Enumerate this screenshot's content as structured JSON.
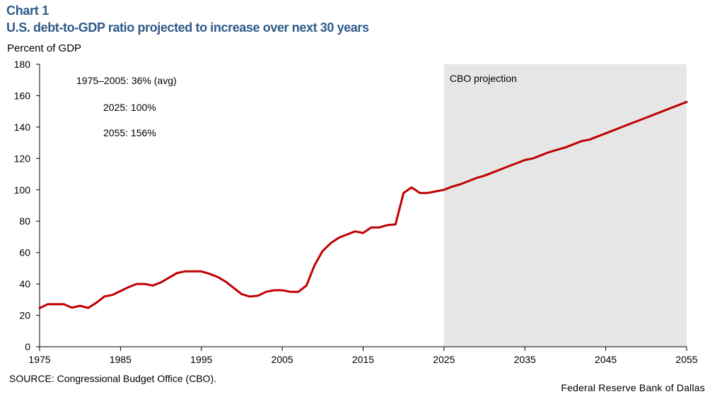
{
  "header": {
    "kicker": "Chart 1",
    "title": "U.S. debt-to-GDP ratio projected to increase over next 30 years",
    "y_unit": "Percent of GDP"
  },
  "footer": {
    "source": "SOURCE: Congressional Budget Office (CBO).",
    "credit": "Federal Reserve Bank of Dallas"
  },
  "colors": {
    "line": "#c00000",
    "shade": "#e6e6e6",
    "title": "#2e5a88",
    "axis": "#000000"
  },
  "chart_data": {
    "type": "line",
    "title": "U.S. debt-to-GDP ratio projected to increase over next 30 years",
    "ylabel": "Percent of GDP",
    "xlabel": "",
    "xlim": [
      1975,
      2055
    ],
    "ylim": [
      0,
      180
    ],
    "xticks": [
      1975,
      1985,
      1995,
      2005,
      2015,
      2025,
      2035,
      2045,
      2055
    ],
    "yticks": [
      0,
      20,
      40,
      60,
      80,
      100,
      120,
      140,
      160,
      180
    ],
    "grid": false,
    "shaded_region": {
      "from": 2025,
      "to": 2055,
      "label": "CBO projection"
    },
    "annotations": [
      {
        "text": "1975–2005: 36% (avg)"
      },
      {
        "text": "2025: 100%"
      },
      {
        "text": "2055: 156%"
      }
    ],
    "series": [
      {
        "name": "Debt-to-GDP ratio",
        "x": [
          1975,
          1976,
          1977,
          1978,
          1979,
          1980,
          1981,
          1982,
          1983,
          1984,
          1985,
          1986,
          1987,
          1988,
          1989,
          1990,
          1991,
          1992,
          1993,
          1994,
          1995,
          1996,
          1997,
          1998,
          1999,
          2000,
          2001,
          2002,
          2003,
          2004,
          2005,
          2006,
          2007,
          2008,
          2009,
          2010,
          2011,
          2012,
          2013,
          2014,
          2015,
          2016,
          2017,
          2018,
          2019,
          2020,
          2021,
          2022,
          2023,
          2024,
          2025,
          2026,
          2027,
          2028,
          2029,
          2030,
          2031,
          2032,
          2033,
          2034,
          2035,
          2036,
          2037,
          2038,
          2039,
          2040,
          2041,
          2042,
          2043,
          2044,
          2045,
          2046,
          2047,
          2048,
          2049,
          2050,
          2051,
          2052,
          2053,
          2054,
          2055
        ],
        "values": [
          24.6,
          27.1,
          27.1,
          27.1,
          24.9,
          26.1,
          24.7,
          28.0,
          32.0,
          33.0,
          35.5,
          38.0,
          40.0,
          40.0,
          39.0,
          41.0,
          44.0,
          47.0,
          48.0,
          48.0,
          48.0,
          46.5,
          44.5,
          41.5,
          37.5,
          33.5,
          32.0,
          32.5,
          35.0,
          36.0,
          36.0,
          35.0,
          35.0,
          39.0,
          52.0,
          61.0,
          66.0,
          69.5,
          71.5,
          73.5,
          72.5,
          76.0,
          76.0,
          77.5,
          78.0,
          98.0,
          101.5,
          98.0,
          98.0,
          99.0,
          100.0,
          102.0,
          103.5,
          105.5,
          107.5,
          109.0,
          111.0,
          113.0,
          115.0,
          117.0,
          119.0,
          120.0,
          122.0,
          124.0,
          125.5,
          127.0,
          129.0,
          131.0,
          132.0,
          134.0,
          136.0,
          138.0,
          140.0,
          142.0,
          144.0,
          146.0,
          148.0,
          150.0,
          152.0,
          154.0,
          156.0
        ]
      }
    ]
  }
}
